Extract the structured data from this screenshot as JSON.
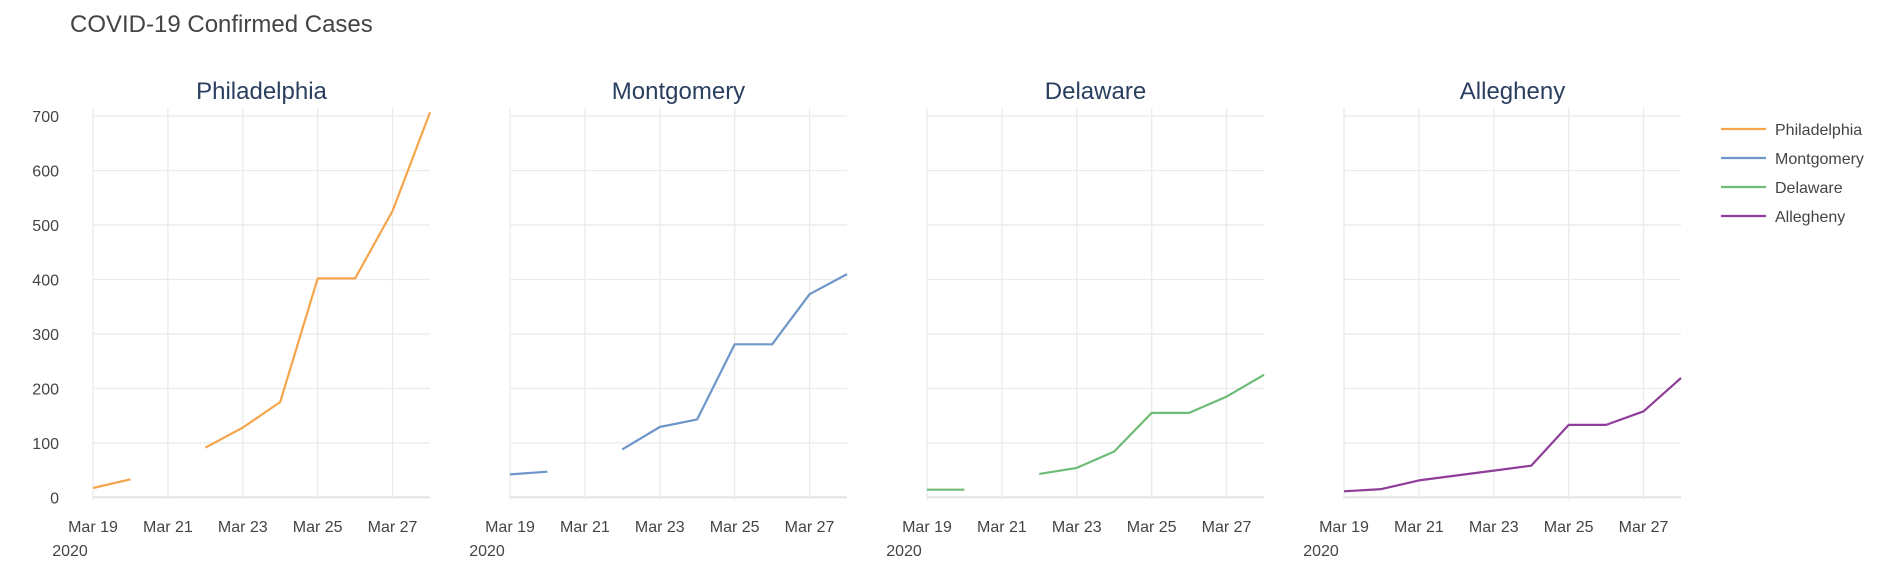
{
  "title": "COVID-19 Confirmed Cases",
  "chart_data": {
    "type": "line",
    "title": "COVID-19 Confirmed Cases",
    "x": [
      "2020-03-19",
      "2020-03-20",
      "2020-03-21",
      "2020-03-22",
      "2020-03-23",
      "2020-03-24",
      "2020-03-25",
      "2020-03-26",
      "2020-03-27",
      "2020-03-28"
    ],
    "xticks": [
      {
        "date": "2020-03-19",
        "label": "Mar 19",
        "sub": "2020"
      },
      {
        "date": "2020-03-21",
        "label": "Mar 21",
        "sub": ""
      },
      {
        "date": "2020-03-23",
        "label": "Mar 23",
        "sub": ""
      },
      {
        "date": "2020-03-25",
        "label": "Mar 25",
        "sub": ""
      },
      {
        "date": "2020-03-27",
        "label": "Mar 27",
        "sub": ""
      }
    ],
    "yticks": [
      0,
      100,
      200,
      300,
      400,
      500,
      600,
      700
    ],
    "ylim": [
      -5,
      715
    ],
    "grid": true,
    "shared_y": true,
    "legend_position": "top-right",
    "series": [
      {
        "name": "Philadelphia",
        "subplot_title": "Philadelphia",
        "color": "#f6a54b",
        "values": [
          17,
          33,
          null,
          91,
          128,
          175,
          402,
          402,
          526,
          707
        ]
      },
      {
        "name": "Montgomery",
        "subplot_title": "Montgomery",
        "color": "#6e96c9",
        "values": [
          42,
          47,
          null,
          88,
          129,
          143,
          281,
          281,
          373,
          410
        ]
      },
      {
        "name": "Delaware",
        "subplot_title": "Delaware",
        "color": "#6dbb74",
        "values": [
          14,
          14,
          null,
          43,
          54,
          84,
          155,
          155,
          185,
          225
        ]
      },
      {
        "name": "Allegheny",
        "subplot_title": "Allegheny",
        "color": "#8e3d98",
        "values": [
          11,
          15,
          31,
          40,
          49,
          58,
          133,
          133,
          158,
          219
        ]
      }
    ]
  }
}
